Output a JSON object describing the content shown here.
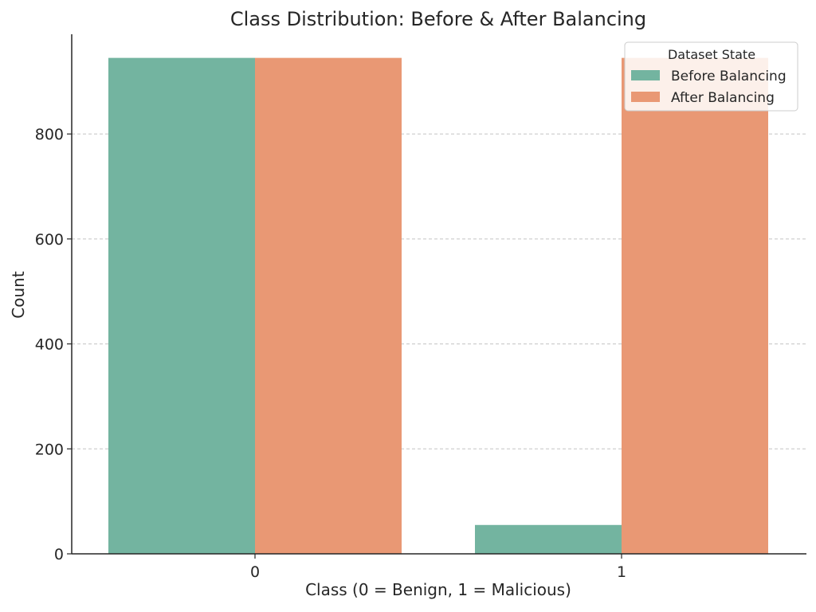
{
  "chart_data": {
    "type": "bar",
    "title": "Class Distribution: Before & After Balancing",
    "xlabel": "Class (0 = Benign, 1 = Malicious)",
    "ylabel": "Count",
    "categories": [
      "0",
      "1"
    ],
    "series": [
      {
        "name": "Before Balancing",
        "values": [
          945,
          55
        ],
        "color": "#73b4a0"
      },
      {
        "name": "After Balancing",
        "values": [
          945,
          945
        ],
        "color": "#e99874"
      }
    ],
    "ylim": [
      0,
      990
    ],
    "yticks": [
      0,
      200,
      400,
      600,
      800
    ],
    "grid": "horizontal-dashed",
    "legend": {
      "title": "Dataset State",
      "placement": "top-right"
    }
  }
}
